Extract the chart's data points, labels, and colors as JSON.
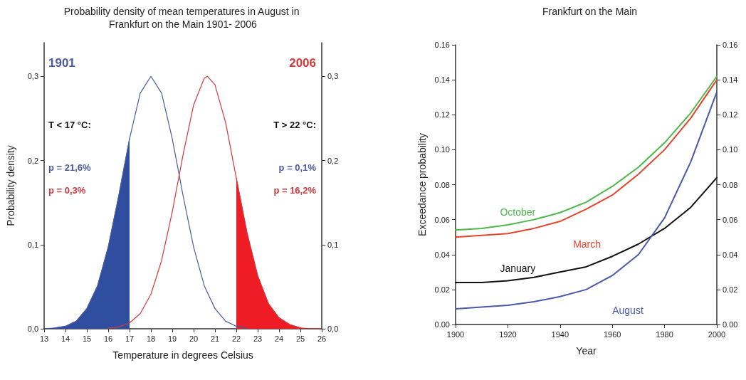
{
  "chart_data": [
    {
      "type": "line",
      "title": "Probability density of mean temperatures in August in Frankfurt on the Main 1901- 2006",
      "xlabel": "Temperature in degrees Celsius",
      "ylabel": "Probability density",
      "xlim": [
        13,
        26
      ],
      "xticks": [
        13,
        14,
        15,
        16,
        17,
        18,
        19,
        20,
        21,
        22,
        23,
        24,
        25,
        26
      ],
      "ylim": [
        0,
        0.34
      ],
      "yticks": [
        {
          "value": 0,
          "label": "0,0"
        },
        {
          "value": 0.1,
          "label": "0,1"
        },
        {
          "value": 0.2,
          "label": "0,2"
        },
        {
          "value": 0.3,
          "label": "0,3"
        }
      ],
      "y2lim": [
        0,
        0.34
      ],
      "y2ticks": [
        {
          "value": 0,
          "label": "0,0"
        },
        {
          "value": 0.1,
          "label": "0,1"
        },
        {
          "value": 0.2,
          "label": "0,2"
        },
        {
          "value": 0.3,
          "label": "0,3"
        }
      ],
      "grid": false,
      "legend": false,
      "marker": "none",
      "line_style": "solid",
      "annotations": [
        "1901",
        "2006",
        "T < 17 °C:",
        "p = 21,6%",
        "p = 0,3%",
        "T > 22 °C:",
        "p = 0,1%",
        "p = 16,2%"
      ],
      "series": [
        {
          "type": "area",
          "color": "#2f4ea0",
          "x": [
            13,
            13.5,
            14,
            14.5,
            15,
            15.5,
            16,
            16.5,
            17
          ],
          "values": [
            0.0,
            0.001,
            0.003,
            0.009,
            0.024,
            0.051,
            0.097,
            0.159,
            0.226
          ]
        },
        {
          "type": "area",
          "color": "#ee1c25",
          "x": [
            22,
            22.5,
            23,
            23.5,
            24,
            24.5,
            25,
            25.5,
            26
          ],
          "values": [
            0.179,
            0.114,
            0.063,
            0.03,
            0.013,
            0.005,
            0.001,
            0.0,
            0.0
          ]
        },
        {
          "type": "line",
          "color": "#4a5aa0",
          "x": [
            13.5,
            14,
            14.5,
            15,
            15.5,
            16,
            16.5,
            17,
            17.5,
            18,
            18.5,
            19,
            19.5,
            20,
            20.5,
            21,
            21.5,
            22,
            22.5
          ],
          "values": [
            0.001,
            0.003,
            0.009,
            0.024,
            0.051,
            0.097,
            0.159,
            0.226,
            0.28,
            0.3,
            0.28,
            0.226,
            0.159,
            0.097,
            0.051,
            0.024,
            0.009,
            0.003,
            0.001
          ]
        },
        {
          "type": "line",
          "color": "#d2383a",
          "x": [
            16,
            16.5,
            17,
            17.5,
            18,
            18.5,
            19,
            19.5,
            20,
            20.5,
            20.65,
            21,
            21.5,
            22,
            22.5,
            23,
            23.5,
            24,
            24.5,
            25
          ],
          "values": [
            0.001,
            0.002,
            0.007,
            0.018,
            0.041,
            0.081,
            0.139,
            0.206,
            0.266,
            0.298,
            0.3,
            0.29,
            0.245,
            0.179,
            0.114,
            0.063,
            0.03,
            0.013,
            0.005,
            0.001
          ]
        }
      ]
    },
    {
      "type": "line",
      "title": "Frankfurt on the Main",
      "xlabel": "Year",
      "ylabel": "Exceedance probability",
      "xlim": [
        1900,
        2000
      ],
      "xticks": [
        1900,
        1920,
        1940,
        1960,
        1980,
        2000
      ],
      "ylim": [
        0,
        0.16
      ],
      "yticks": [
        {
          "value": 0,
          "label": "0.00"
        },
        {
          "value": 0.02,
          "label": "0.02"
        },
        {
          "value": 0.04,
          "label": "0.04"
        },
        {
          "value": 0.06,
          "label": "0.06"
        },
        {
          "value": 0.08,
          "label": "0.08"
        },
        {
          "value": 0.1,
          "label": "0.10"
        },
        {
          "value": 0.12,
          "label": "0.12"
        },
        {
          "value": 0.14,
          "label": "0.14"
        },
        {
          "value": 0.16,
          "label": "0.16"
        }
      ],
      "y2lim": [
        0,
        0.16
      ],
      "y2ticks": [
        {
          "value": 0,
          "label": "0.00"
        },
        {
          "value": 0.02,
          "label": "0.02"
        },
        {
          "value": 0.04,
          "label": "0.04"
        },
        {
          "value": 0.06,
          "label": "0.06"
        },
        {
          "value": 0.08,
          "label": "0.08"
        },
        {
          "value": 0.1,
          "label": "0.10"
        },
        {
          "value": 0.12,
          "label": "0.12"
        },
        {
          "value": 0.14,
          "label": "0.14"
        },
        {
          "value": 0.16,
          "label": "0.16"
        }
      ],
      "grid": false,
      "legend": false,
      "marker": "none",
      "line_style": "solid",
      "x": [
        1900,
        1910,
        1920,
        1930,
        1940,
        1950,
        1960,
        1970,
        1980,
        1990,
        2000
      ],
      "series": [
        {
          "name": "October",
          "color": "#4cb848",
          "values": [
            0.054,
            0.055,
            0.057,
            0.06,
            0.064,
            0.07,
            0.079,
            0.09,
            0.104,
            0.121,
            0.142
          ]
        },
        {
          "name": "March",
          "color": "#e5442c",
          "values": [
            0.05,
            0.051,
            0.052,
            0.055,
            0.059,
            0.066,
            0.074,
            0.086,
            0.1,
            0.118,
            0.14
          ]
        },
        {
          "name": "January",
          "color": "#111111",
          "values": [
            0.024,
            0.024,
            0.025,
            0.027,
            0.03,
            0.033,
            0.039,
            0.046,
            0.055,
            0.067,
            0.084
          ]
        },
        {
          "name": "August",
          "color": "#4a58a8",
          "values": [
            0.009,
            0.01,
            0.011,
            0.013,
            0.016,
            0.02,
            0.028,
            0.04,
            0.061,
            0.093,
            0.133
          ]
        }
      ]
    }
  ]
}
